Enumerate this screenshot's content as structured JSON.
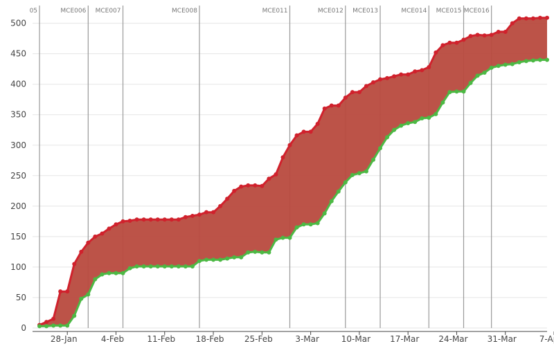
{
  "colors": {
    "upper_line": "#d0212c",
    "lower_line": "#4cb944",
    "band_fill": "#b84a3e",
    "grid": "#e5e5e5",
    "marker_line": "#999999",
    "axis": "#444444"
  },
  "chart_data": {
    "type": "area",
    "title": "",
    "xlabel": "",
    "ylabel": "",
    "ylim": [
      0,
      520
    ],
    "x_range": [
      "2015-01-23",
      "2015-04-07"
    ],
    "grid": "horizontal",
    "y_ticks": [
      0,
      50,
      100,
      150,
      200,
      250,
      300,
      350,
      400,
      450,
      500
    ],
    "x_ticks": [
      {
        "date": "2015-01-28",
        "label": "28-Jan"
      },
      {
        "date": "2015-02-04",
        "label": "4-Feb"
      },
      {
        "date": "2015-02-11",
        "label": "11-Feb"
      },
      {
        "date": "2015-02-18",
        "label": "18-Feb"
      },
      {
        "date": "2015-02-25",
        "label": "25-Feb"
      },
      {
        "date": "2015-03-04",
        "label": "3-Mar"
      },
      {
        "date": "2015-03-11",
        "label": "10-Mar"
      },
      {
        "date": "2015-03-18",
        "label": "17-Mar"
      },
      {
        "date": "2015-03-25",
        "label": "24-Mar"
      },
      {
        "date": "2015-04-01",
        "label": "31-Mar"
      },
      {
        "date": "2015-04-08",
        "label": "7-Apr"
      }
    ],
    "markers": [
      {
        "date": "2015-01-24",
        "label": "05"
      },
      {
        "date": "2015-01-31",
        "label": "MCE006"
      },
      {
        "date": "2015-02-05",
        "label": "MCE007"
      },
      {
        "date": "2015-02-16",
        "label": "MCE008"
      },
      {
        "date": "2015-03-01",
        "label": "MCE011"
      },
      {
        "date": "2015-03-09",
        "label": "MCE012"
      },
      {
        "date": "2015-03-14",
        "label": "MCE013"
      },
      {
        "date": "2015-03-21",
        "label": "MCE014"
      },
      {
        "date": "2015-03-26",
        "label": "MCE015"
      },
      {
        "date": "2015-03-30",
        "label": "MCE016"
      }
    ],
    "x": [
      "2015-01-24",
      "2015-01-25",
      "2015-01-26",
      "2015-01-27",
      "2015-01-28",
      "2015-01-29",
      "2015-01-30",
      "2015-01-31",
      "2015-02-01",
      "2015-02-02",
      "2015-02-03",
      "2015-02-04",
      "2015-02-05",
      "2015-02-06",
      "2015-02-07",
      "2015-02-08",
      "2015-02-09",
      "2015-02-10",
      "2015-02-11",
      "2015-02-12",
      "2015-02-13",
      "2015-02-14",
      "2015-02-15",
      "2015-02-16",
      "2015-02-17",
      "2015-02-18",
      "2015-02-19",
      "2015-02-20",
      "2015-02-21",
      "2015-02-22",
      "2015-02-23",
      "2015-02-24",
      "2015-02-25",
      "2015-02-26",
      "2015-02-27",
      "2015-02-28",
      "2015-03-01",
      "2015-03-02",
      "2015-03-03",
      "2015-03-04",
      "2015-03-05",
      "2015-03-06",
      "2015-03-07",
      "2015-03-08",
      "2015-03-09",
      "2015-03-10",
      "2015-03-11",
      "2015-03-12",
      "2015-03-13",
      "2015-03-14",
      "2015-03-15",
      "2015-03-16",
      "2015-03-17",
      "2015-03-18",
      "2015-03-19",
      "2015-03-20",
      "2015-03-21",
      "2015-03-22",
      "2015-03-23",
      "2015-03-24",
      "2015-03-25",
      "2015-03-26",
      "2015-03-27",
      "2015-03-28",
      "2015-03-29",
      "2015-03-30",
      "2015-03-31",
      "2015-04-01",
      "2015-04-02",
      "2015-04-03",
      "2015-04-04",
      "2015-04-05",
      "2015-04-06",
      "2015-04-07"
    ],
    "series": [
      {
        "values": [
          5,
          10,
          15,
          60,
          60,
          105,
          125,
          140,
          150,
          155,
          163,
          170,
          175,
          176,
          178,
          178,
          178,
          178,
          178,
          178,
          178,
          182,
          184,
          186,
          190,
          190,
          200,
          212,
          225,
          232,
          234,
          234,
          233,
          245,
          252,
          280,
          300,
          316,
          322,
          322,
          335,
          360,
          365,
          365,
          378,
          387,
          387,
          397,
          403,
          408,
          410,
          413,
          416,
          416,
          421,
          423,
          428,
          452,
          464,
          468,
          468,
          473,
          479,
          481,
          480,
          481,
          486,
          486,
          500,
          508,
          508,
          508,
          509,
          509
        ]
      },
      {
        "values": [
          3,
          3,
          4,
          4,
          4,
          20,
          48,
          55,
          80,
          88,
          90,
          90,
          90,
          98,
          101,
          101,
          101,
          101,
          101,
          101,
          101,
          101,
          101,
          110,
          112,
          112,
          112,
          114,
          116,
          116,
          124,
          125,
          124,
          124,
          145,
          148,
          148,
          165,
          170,
          170,
          172,
          188,
          208,
          224,
          239,
          251,
          254,
          257,
          276,
          295,
          313,
          325,
          332,
          336,
          338,
          344,
          345,
          351,
          370,
          387,
          388,
          388,
          402,
          414,
          419,
          427,
          430,
          432,
          433,
          436,
          438,
          439,
          440,
          440
        ]
      }
    ]
  }
}
